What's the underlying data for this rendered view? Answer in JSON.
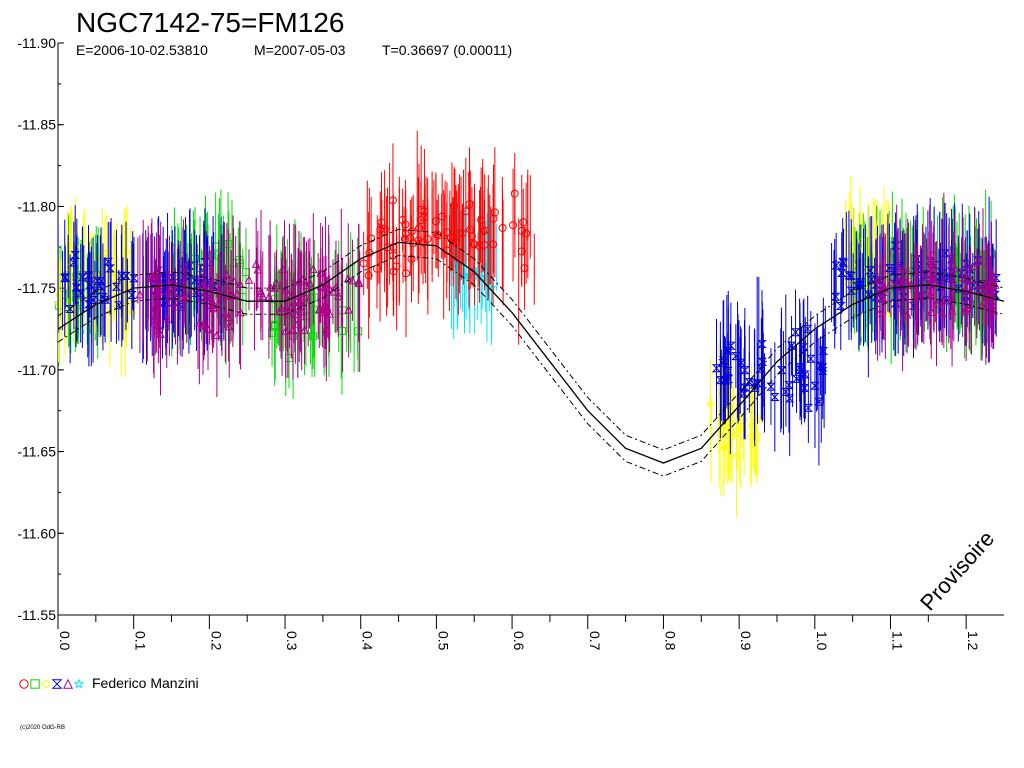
{
  "chart_data": {
    "type": "scatter",
    "title": "NGC7142-75=FM126",
    "subtitle": {
      "epoch": "E=2006-10-02.53810",
      "max": "M=2007-05-03",
      "period": "T=0.36697 (0.00011)"
    },
    "xlim": [
      0.0,
      1.25
    ],
    "ylim": [
      -11.9,
      -11.55
    ],
    "y_inverted": true,
    "x_ticks": [
      "0.0",
      "0.1",
      "0.2",
      "0.3",
      "0.4",
      "0.5",
      "0.6",
      "0.7",
      "0.8",
      "0.9",
      "1.0",
      "1.1",
      "1.2"
    ],
    "y_ticks": [
      "-11.90",
      "-11.85",
      "-11.80",
      "-11.75",
      "-11.70",
      "-11.65",
      "-11.60",
      "-11.55"
    ],
    "grid": false,
    "colors": {
      "red": "#ff0000",
      "green": "#00dd00",
      "yellow": "#ffff00",
      "blue": "#0000dd",
      "purple": "#aa0088",
      "cyan": "#00e5ff",
      "fit": "#000000"
    },
    "series": [
      {
        "color": "#00dd00",
        "marker": "square",
        "segments": [
          [
            0.0,
            0.06,
            -11.75,
            0.012
          ],
          [
            0.15,
            0.25,
            -11.757,
            0.017
          ],
          [
            0.28,
            0.4,
            -11.735,
            0.018
          ],
          [
            1.05,
            1.24,
            -11.755,
            0.015
          ]
        ]
      },
      {
        "color": "#ffff00",
        "marker": "diamond",
        "segments": [
          [
            0.0,
            0.1,
            -11.755,
            0.018
          ],
          [
            0.86,
            0.93,
            -11.665,
            0.02
          ],
          [
            1.04,
            1.1,
            -11.77,
            0.015
          ]
        ]
      },
      {
        "color": "#0000dd",
        "marker": "hourglass",
        "segments": [
          [
            0.0,
            0.22,
            -11.75,
            0.013
          ],
          [
            0.87,
            1.02,
            -11.7,
            0.018
          ],
          [
            1.02,
            1.24,
            -11.755,
            0.015
          ]
        ]
      },
      {
        "color": "#aa0088",
        "marker": "triangle",
        "segments": [
          [
            0.1,
            0.4,
            -11.745,
            0.018
          ],
          [
            1.08,
            1.24,
            -11.75,
            0.016
          ]
        ]
      },
      {
        "color": "#00e5ff",
        "marker": "star",
        "segments": [
          [
            0.52,
            0.58,
            -11.76,
            0.012
          ]
        ]
      },
      {
        "color": "#ff0000",
        "marker": "circle",
        "segments": [
          [
            0.4,
            0.63,
            -11.78,
            0.02
          ]
        ]
      }
    ],
    "fit_curve": [
      {
        "phase": 0.0,
        "mag": -11.725
      },
      {
        "phase": 0.05,
        "mag": -11.74
      },
      {
        "phase": 0.1,
        "mag": -11.75
      },
      {
        "phase": 0.15,
        "mag": -11.752
      },
      {
        "phase": 0.2,
        "mag": -11.748
      },
      {
        "phase": 0.25,
        "mag": -11.742
      },
      {
        "phase": 0.3,
        "mag": -11.742
      },
      {
        "phase": 0.35,
        "mag": -11.752
      },
      {
        "phase": 0.4,
        "mag": -11.768
      },
      {
        "phase": 0.45,
        "mag": -11.778
      },
      {
        "phase": 0.5,
        "mag": -11.776
      },
      {
        "phase": 0.55,
        "mag": -11.76
      },
      {
        "phase": 0.6,
        "mag": -11.735
      },
      {
        "phase": 0.65,
        "mag": -11.705
      },
      {
        "phase": 0.7,
        "mag": -11.675
      },
      {
        "phase": 0.75,
        "mag": -11.652
      },
      {
        "phase": 0.8,
        "mag": -11.643
      },
      {
        "phase": 0.85,
        "mag": -11.652
      },
      {
        "phase": 0.9,
        "mag": -11.678
      },
      {
        "phase": 0.95,
        "mag": -11.705
      },
      {
        "phase": 1.0,
        "mag": -11.725
      },
      {
        "phase": 1.05,
        "mag": -11.74
      },
      {
        "phase": 1.1,
        "mag": -11.75
      },
      {
        "phase": 1.15,
        "mag": -11.752
      },
      {
        "phase": 1.2,
        "mag": -11.748
      },
      {
        "phase": 1.25,
        "mag": -11.742
      }
    ],
    "fit_band": 0.008,
    "legend_markers": [
      "circle",
      "square",
      "diamond",
      "hourglass",
      "triangle",
      "star"
    ],
    "legend_colors": [
      "#ff0000",
      "#00dd00",
      "#ffff00",
      "#0000dd",
      "#aa0088",
      "#00e5ff"
    ],
    "legend_label": "Federico Manzini",
    "watermark": "Provisoire",
    "copyright": "(c)2020 OdG-RB"
  }
}
